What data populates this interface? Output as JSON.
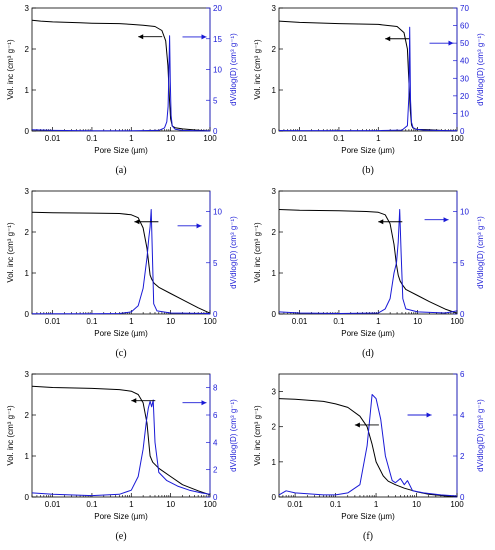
{
  "chart_data": [
    {
      "id": "a",
      "caption": "(a)",
      "type": "line",
      "xlabel": "Pore Size (µm)",
      "ylabel": "Vol. inc (cm³ g⁻¹)",
      "y2label": "dV/dlog(D) (cm³ g⁻¹)",
      "xscale": "log",
      "xlim": [
        0.003,
        100
      ],
      "xticks": [
        0.01,
        0.1,
        1,
        10,
        100
      ],
      "xticklabels": [
        "0.01",
        "0.1",
        "1",
        "10",
        "100"
      ],
      "ylim": [
        0,
        3
      ],
      "yticks": [
        0,
        1,
        2,
        3
      ],
      "yticklabels": [
        "0",
        "1",
        "2",
        "3"
      ],
      "y2lim": [
        0,
        20
      ],
      "y2ticks": [
        0,
        5,
        10,
        15,
        20
      ],
      "y2ticklabels": [
        "0",
        "5",
        "10",
        "15",
        "20"
      ],
      "series": [
        {
          "axis": "left",
          "color": "#000000",
          "x": [
            0.003,
            0.005,
            0.01,
            0.05,
            0.1,
            0.5,
            1,
            2,
            4,
            6,
            7.5,
            8.5,
            9.3,
            10,
            11,
            13,
            20,
            50,
            100
          ],
          "y": [
            2.7,
            2.68,
            2.66,
            2.64,
            2.63,
            2.62,
            2.6,
            2.58,
            2.55,
            2.45,
            2.2,
            1.6,
            0.8,
            0.3,
            0.12,
            0.08,
            0.05,
            0.02,
            0.0
          ]
        },
        {
          "axis": "right",
          "color": "#1a1ad6",
          "x": [
            0.003,
            0.01,
            0.1,
            1,
            5,
            7,
            8,
            8.6,
            9.0,
            9.4,
            9.8,
            10.3,
            11,
            13,
            20,
            50,
            100
          ],
          "y": [
            0.2,
            0.1,
            0.05,
            0.05,
            0.1,
            0.5,
            1.5,
            4,
            9,
            15.5,
            8,
            2.5,
            0.8,
            0.3,
            0.1,
            0.05,
            0.02
          ]
        }
      ],
      "arrows": [
        {
          "axis": "left",
          "direction": "left",
          "x": 1.5,
          "y": 2.3
        },
        {
          "axis": "right",
          "direction": "right",
          "x": 20,
          "y": 15.3
        }
      ]
    },
    {
      "id": "b",
      "caption": "(b)",
      "type": "line",
      "xlabel": "Pore Size (µm)",
      "ylabel": "Vol. inc (cm³ g⁻¹)",
      "y2label": "dV/dlog(D) (cm³ g⁻¹)",
      "xscale": "log",
      "xlim": [
        0.003,
        100
      ],
      "xticks": [
        0.01,
        0.1,
        1,
        10,
        100
      ],
      "xticklabels": [
        "0.01",
        "0.1",
        "1",
        "10",
        "100"
      ],
      "ylim": [
        0,
        3
      ],
      "yticks": [
        0,
        1,
        2,
        3
      ],
      "yticklabels": [
        "0",
        "1",
        "2",
        "3"
      ],
      "y2lim": [
        0,
        70
      ],
      "y2ticks": [
        0,
        10,
        20,
        30,
        40,
        50,
        60,
        70
      ],
      "y2ticklabels": [
        "0",
        "10",
        "20",
        "30",
        "40",
        "50",
        "60",
        "70"
      ],
      "series": [
        {
          "axis": "left",
          "color": "#000000",
          "x": [
            0.003,
            0.01,
            0.1,
            1,
            3,
            4.5,
            5.5,
            6.0,
            6.5,
            7.0,
            7.5,
            8.5,
            10,
            20,
            50,
            100
          ],
          "y": [
            2.68,
            2.65,
            2.62,
            2.6,
            2.55,
            2.4,
            2.0,
            1.2,
            0.5,
            0.15,
            0.08,
            0.05,
            0.04,
            0.03,
            0.01,
            0.0
          ]
        },
        {
          "axis": "right",
          "color": "#1a1ad6",
          "x": [
            0.003,
            0.01,
            1,
            4,
            5.5,
            6.0,
            6.3,
            6.6,
            7.0,
            7.6,
            9,
            15,
            50,
            100
          ],
          "y": [
            0.3,
            0.2,
            0.2,
            0.5,
            3,
            20,
            59,
            18,
            5,
            2,
            1,
            0.5,
            0.2,
            0.1
          ]
        }
      ],
      "arrows": [
        {
          "axis": "left",
          "direction": "left",
          "x": 1.5,
          "y": 2.25
        },
        {
          "axis": "right",
          "direction": "right",
          "x": 20,
          "y": 50
        }
      ]
    },
    {
      "id": "c",
      "caption": "(c)",
      "type": "line",
      "xlabel": "Pore Size (µm)",
      "ylabel": "Vol. inc (cm³ g⁻¹)",
      "y2label": "dV/dlog(D) (cm³ g⁻¹)",
      "xscale": "log",
      "xlim": [
        0.003,
        100
      ],
      "xticks": [
        0.01,
        0.1,
        1,
        10,
        100
      ],
      "xticklabels": [
        "0.01",
        "0.1",
        "1",
        "10",
        "100"
      ],
      "ylim": [
        0,
        3
      ],
      "yticks": [
        0,
        1,
        2,
        3
      ],
      "yticklabels": [
        "0",
        "1",
        "2",
        "3"
      ],
      "y2lim": [
        0,
        12
      ],
      "y2ticks": [
        0,
        5,
        10
      ],
      "y2ticklabels": [
        "0",
        "5",
        "10"
      ],
      "series": [
        {
          "axis": "left",
          "color": "#000000",
          "x": [
            0.003,
            0.01,
            0.1,
            0.5,
            1,
            1.5,
            2.0,
            2.5,
            2.8,
            3.0,
            3.3,
            3.8,
            5,
            10,
            20,
            50,
            100
          ],
          "y": [
            2.48,
            2.47,
            2.46,
            2.45,
            2.42,
            2.35,
            2.1,
            1.6,
            1.2,
            0.95,
            0.85,
            0.75,
            0.65,
            0.5,
            0.35,
            0.15,
            0.02
          ]
        },
        {
          "axis": "right",
          "color": "#1a1ad6",
          "x": [
            0.003,
            0.1,
            0.5,
            1,
            1.5,
            2.0,
            2.5,
            2.8,
            3.0,
            3.2,
            3.4,
            3.7,
            4.5,
            10,
            100
          ],
          "y": [
            0.02,
            0.02,
            0.05,
            0.2,
            0.8,
            2.5,
            5.5,
            7.5,
            8.5,
            10.2,
            6.5,
            1.0,
            0.3,
            0.1,
            0.05
          ]
        }
      ],
      "arrows": [
        {
          "axis": "left",
          "direction": "left",
          "x": 1.2,
          "y": 2.25
        },
        {
          "axis": "right",
          "direction": "right",
          "x": 15,
          "y": 8.6
        }
      ]
    },
    {
      "id": "d",
      "caption": "(d)",
      "type": "line",
      "xlabel": "Pore Size (µm)",
      "ylabel": "Vol. inc (cm³ g⁻¹)",
      "y2label": "dV/dlog(D) (cm³ g⁻¹)",
      "xscale": "log",
      "xlim": [
        0.003,
        100
      ],
      "xticks": [
        0.01,
        0.1,
        1,
        10,
        100
      ],
      "xticklabels": [
        "0.01",
        "0.1",
        "1",
        "10",
        "100"
      ],
      "ylim": [
        0,
        3
      ],
      "yticks": [
        0,
        1,
        2,
        3
      ],
      "yticklabels": [
        "0",
        "1",
        "2",
        "3"
      ],
      "y2lim": [
        0,
        12
      ],
      "y2ticks": [
        0,
        5,
        10
      ],
      "y2ticklabels": [
        "0",
        "5",
        "10"
      ],
      "series": [
        {
          "axis": "left",
          "color": "#000000",
          "x": [
            0.003,
            0.01,
            0.1,
            0.5,
            1,
            1.5,
            2.0,
            2.5,
            2.9,
            3.2,
            3.6,
            4.2,
            5,
            10,
            20,
            50,
            100
          ],
          "y": [
            2.55,
            2.53,
            2.52,
            2.5,
            2.48,
            2.42,
            2.2,
            1.7,
            1.2,
            0.95,
            0.8,
            0.7,
            0.6,
            0.45,
            0.3,
            0.12,
            0.02
          ]
        },
        {
          "axis": "right",
          "color": "#1a1ad6",
          "x": [
            0.003,
            0.01,
            0.1,
            1,
            1.5,
            2.0,
            2.5,
            2.9,
            3.2,
            3.5,
            3.8,
            4.2,
            5,
            10,
            50,
            100
          ],
          "y": [
            0.2,
            0.1,
            0.05,
            0.1,
            0.5,
            1.5,
            4,
            5,
            7,
            10.2,
            6,
            1.5,
            0.5,
            0.2,
            0.1,
            0.3
          ]
        }
      ],
      "arrows": [
        {
          "axis": "left",
          "direction": "left",
          "x": 1.0,
          "y": 2.25
        },
        {
          "axis": "right",
          "direction": "right",
          "x": 15,
          "y": 9.2
        }
      ]
    },
    {
      "id": "e",
      "caption": "(e)",
      "type": "line",
      "xlabel": "Pore Size (µm)",
      "ylabel": "Vol. inc (cm³ g⁻¹)",
      "y2label": "dV/dlog(D) (cm³ g⁻¹)",
      "xscale": "log",
      "xlim": [
        0.003,
        100
      ],
      "xticks": [
        0.01,
        0.1,
        1,
        10,
        100
      ],
      "xticklabels": [
        "0.01",
        "0.1",
        "1",
        "10",
        "100"
      ],
      "ylim": [
        0,
        3
      ],
      "yticks": [
        0,
        1,
        2,
        3
      ],
      "yticklabels": [
        "0",
        "1",
        "2",
        "3"
      ],
      "y2lim": [
        0,
        9
      ],
      "y2ticks": [
        0,
        2,
        4,
        6,
        8
      ],
      "y2ticklabels": [
        "0",
        "2",
        "4",
        "6",
        "8"
      ],
      "series": [
        {
          "axis": "left",
          "color": "#000000",
          "x": [
            0.003,
            0.01,
            0.1,
            0.5,
            1,
            1.5,
            2.0,
            2.5,
            2.8,
            3.0,
            3.5,
            5,
            10,
            20,
            50,
            100
          ],
          "y": [
            2.7,
            2.67,
            2.65,
            2.62,
            2.58,
            2.5,
            2.3,
            1.8,
            1.3,
            1.0,
            0.85,
            0.7,
            0.5,
            0.3,
            0.15,
            0.05
          ]
        },
        {
          "axis": "right",
          "color": "#1a1ad6",
          "x": [
            0.003,
            0.01,
            0.1,
            0.5,
            1,
            1.5,
            2.0,
            2.4,
            2.7,
            3.0,
            3.3,
            3.6,
            4.0,
            5,
            8,
            15,
            30,
            60,
            100
          ],
          "y": [
            0.3,
            0.2,
            0.1,
            0.2,
            0.5,
            1.5,
            3.5,
            5.5,
            6.5,
            7.0,
            6.6,
            7.1,
            4.0,
            1.8,
            1.2,
            0.8,
            0.5,
            0.3,
            0.2
          ]
        }
      ],
      "arrows": [
        {
          "axis": "left",
          "direction": "left",
          "x": 1.0,
          "y": 2.35
        },
        {
          "axis": "right",
          "direction": "right",
          "x": 20,
          "y": 6.9
        }
      ]
    },
    {
      "id": "f",
      "caption": "(f)",
      "type": "line",
      "xlabel": "Pore Size (µm)",
      "ylabel": "Vol. inc (cm³ g⁻¹)",
      "y2label": "dV/dlog(D) (cm³ g⁻¹)",
      "xscale": "log",
      "xlim": [
        0.004,
        100
      ],
      "xticks": [
        0.01,
        0.1,
        1,
        10,
        100
      ],
      "xticklabels": [
        "0.01",
        "0.1",
        "1",
        "10",
        "100"
      ],
      "ylim": [
        0,
        3.5
      ],
      "yticks": [
        0,
        1,
        2,
        3
      ],
      "yticklabels": [
        "0",
        "1",
        "2",
        "3"
      ],
      "y2lim": [
        0,
        6
      ],
      "y2ticks": [
        0,
        2,
        4,
        6
      ],
      "y2ticklabels": [
        "0",
        "2",
        "4",
        "6"
      ],
      "series": [
        {
          "axis": "left",
          "color": "#000000",
          "x": [
            0.004,
            0.01,
            0.05,
            0.1,
            0.2,
            0.4,
            0.6,
            0.8,
            1.0,
            1.5,
            2,
            3,
            5,
            10,
            20,
            50,
            100
          ],
          "y": [
            2.8,
            2.78,
            2.72,
            2.65,
            2.55,
            2.3,
            2.0,
            1.5,
            1.0,
            0.6,
            0.45,
            0.35,
            0.25,
            0.15,
            0.08,
            0.03,
            0.01
          ]
        },
        {
          "axis": "right",
          "color": "#1a1ad6",
          "x": [
            0.004,
            0.006,
            0.01,
            0.05,
            0.1,
            0.2,
            0.4,
            0.6,
            0.8,
            1.0,
            1.3,
            1.7,
            2.5,
            3,
            4,
            5,
            6,
            8,
            15,
            40,
            100
          ],
          "y": [
            0.1,
            0.3,
            0.2,
            0.1,
            0.1,
            0.2,
            0.6,
            2.5,
            5.0,
            4.8,
            3.8,
            2.0,
            0.8,
            0.7,
            0.9,
            0.6,
            0.8,
            0.3,
            0.2,
            0.1,
            0.05
          ]
        }
      ],
      "arrows": [
        {
          "axis": "left",
          "direction": "left",
          "x": 0.3,
          "y": 2.05
        },
        {
          "axis": "right",
          "direction": "right",
          "x": 6,
          "y": 4.0
        }
      ]
    }
  ]
}
